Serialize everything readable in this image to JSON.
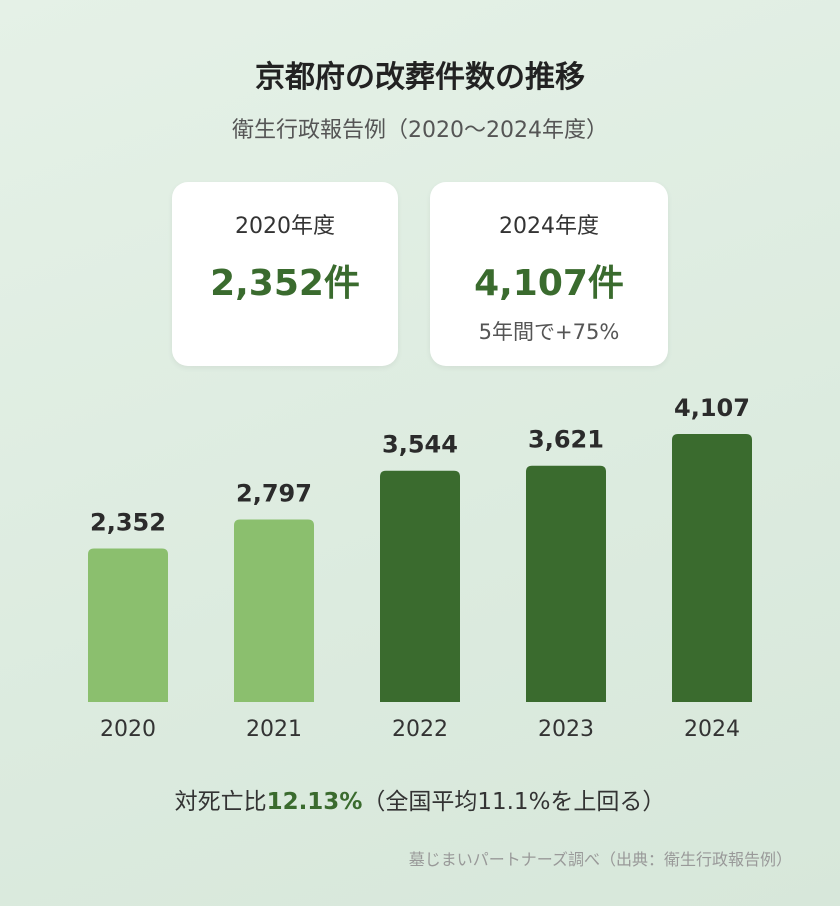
{
  "title": "京都府の改葬件数の推移",
  "subtitle": "衛生行政報告例（2020〜2024年度）",
  "cards": [
    {
      "label": "2020年度",
      "value": "2,352件",
      "note": ""
    },
    {
      "label": "2024年度",
      "value": "4,107件",
      "note": "5年間で+75%"
    }
  ],
  "ratio": {
    "prefix": "対死亡比",
    "value": "12.13%",
    "suffix": "（全国平均11.1%を上回る）"
  },
  "source": "墓じまいパートナーズ調べ（出典：衛生行政報告例）",
  "colors": {
    "light": "#8bbf6e",
    "dark": "#3a6b2e"
  },
  "chart_data": {
    "type": "bar",
    "title": "京都府の改葬件数の推移",
    "categories": [
      "2020",
      "2021",
      "2022",
      "2023",
      "2024"
    ],
    "values": [
      2352,
      2797,
      3544,
      3621,
      4107
    ],
    "labels": [
      "2,352",
      "2,797",
      "3,544",
      "3,621",
      "4,107"
    ],
    "bar_colors": [
      "#8bbf6e",
      "#8bbf6e",
      "#3a6b2e",
      "#3a6b2e",
      "#3a6b2e"
    ],
    "ylim": [
      0,
      4107
    ],
    "xlabel": "",
    "ylabel": "",
    "grid": false
  }
}
